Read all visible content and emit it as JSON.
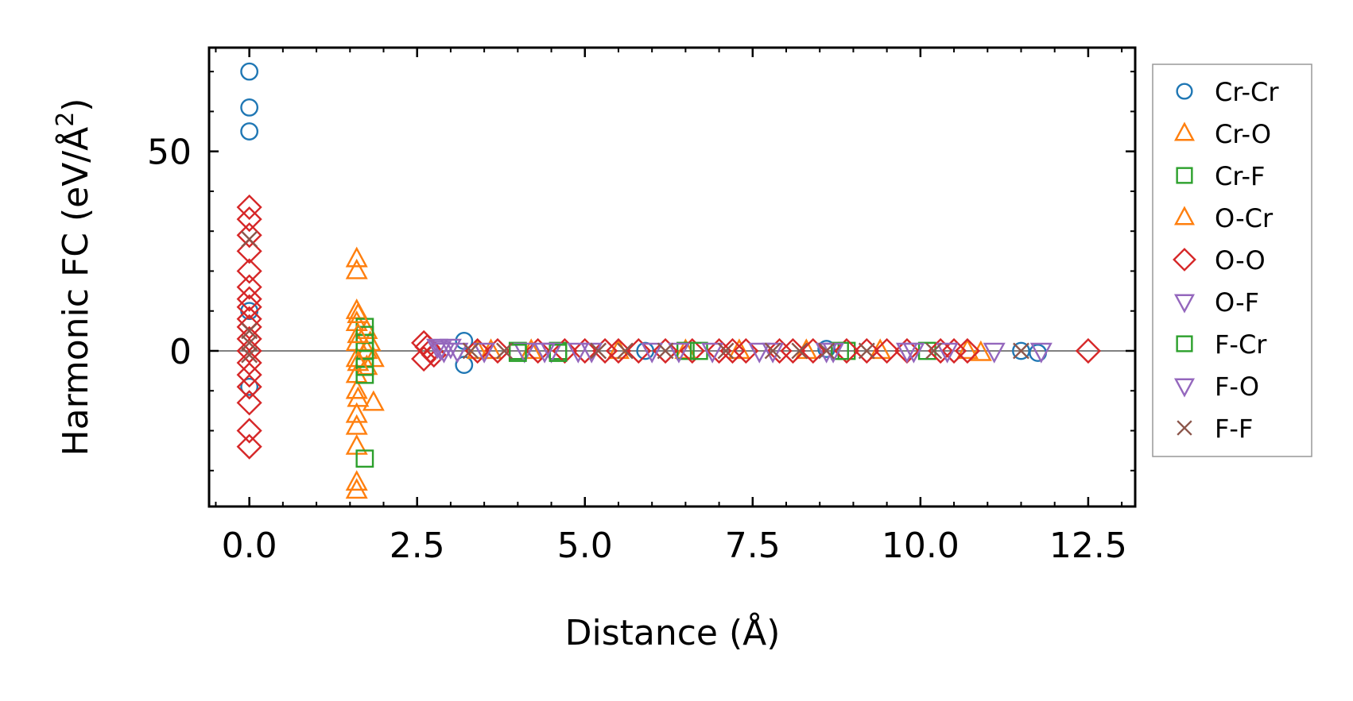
{
  "chart_data": {
    "type": "scatter",
    "xlabel": "Distance (Å)",
    "ylabel_prefix": "Harmonic FC (eV/Å",
    "ylabel_sup": "2",
    "ylabel_suffix": ")",
    "xlim": [
      -0.6,
      13.2
    ],
    "ylim": [
      -39,
      76
    ],
    "xticks": [
      0.0,
      2.5,
      5.0,
      7.5,
      10.0,
      12.5
    ],
    "xtick_labels": [
      "0.0",
      "2.5",
      "5.0",
      "7.5",
      "10.0",
      "12.5"
    ],
    "yticks": [
      0,
      50
    ],
    "ytick_labels": [
      "0",
      "50"
    ],
    "zero_line": true,
    "legend_position": "right, outside",
    "series": [
      {
        "name": "Cr-Cr",
        "marker": "circle",
        "color": "#1f77b4",
        "points": [
          [
            0,
            70
          ],
          [
            0,
            61
          ],
          [
            0,
            55
          ],
          [
            0,
            10
          ],
          [
            0,
            -9
          ],
          [
            3.2,
            2.5
          ],
          [
            3.2,
            -3.5
          ],
          [
            5.9,
            0
          ],
          [
            8.6,
            0.5
          ],
          [
            11.5,
            0
          ],
          [
            11.75,
            -0.5
          ]
        ]
      },
      {
        "name": "Cr-O",
        "marker": "triangle-up",
        "color": "#ff7f0e",
        "points": [
          [
            1.6,
            23
          ],
          [
            1.6,
            20
          ],
          [
            1.6,
            10
          ],
          [
            1.6,
            7
          ],
          [
            1.6,
            2
          ],
          [
            1.6,
            -2
          ],
          [
            1.6,
            -6
          ],
          [
            1.6,
            -10
          ],
          [
            1.6,
            -16
          ],
          [
            1.6,
            -19
          ],
          [
            1.6,
            -24
          ],
          [
            1.6,
            -33
          ],
          [
            1.6,
            -35
          ],
          [
            1.75,
            5
          ],
          [
            1.75,
            0
          ],
          [
            1.75,
            -4
          ],
          [
            1.8,
            2
          ],
          [
            1.85,
            -2
          ],
          [
            1.85,
            -13
          ],
          [
            3.4,
            0
          ],
          [
            4.2,
            0
          ],
          [
            6.5,
            0
          ],
          [
            8.3,
            0
          ],
          [
            10.7,
            0
          ],
          [
            10.9,
            -0.5
          ]
        ]
      },
      {
        "name": "Cr-F",
        "marker": "square",
        "color": "#2ca02c",
        "points": [
          [
            1.72,
            6
          ],
          [
            1.72,
            4
          ],
          [
            1.72,
            2
          ],
          [
            1.72,
            0
          ],
          [
            1.72,
            -2
          ],
          [
            1.72,
            -4
          ],
          [
            1.72,
            -6
          ],
          [
            1.72,
            -27
          ],
          [
            4.0,
            0
          ],
          [
            4.6,
            0
          ],
          [
            6.5,
            0
          ],
          [
            8.9,
            0
          ],
          [
            10.1,
            0
          ]
        ]
      },
      {
        "name": "O-Cr",
        "marker": "triangle-up",
        "color": "#ff7f0e",
        "points": [
          [
            1.62,
            9
          ],
          [
            1.62,
            4
          ],
          [
            1.62,
            -3
          ],
          [
            1.62,
            -12
          ],
          [
            3.6,
            0
          ],
          [
            5.5,
            0
          ],
          [
            7.3,
            0
          ],
          [
            9.4,
            0
          ]
        ]
      },
      {
        "name": "O-O",
        "marker": "diamond",
        "color": "#d62728",
        "points": [
          [
            0,
            36
          ],
          [
            0,
            33
          ],
          [
            0,
            29
          ],
          [
            0,
            25
          ],
          [
            0,
            20
          ],
          [
            0,
            16
          ],
          [
            0,
            13
          ],
          [
            0,
            11
          ],
          [
            0,
            8
          ],
          [
            0,
            6
          ],
          [
            0,
            3
          ],
          [
            0,
            0
          ],
          [
            0,
            -3
          ],
          [
            0,
            -6
          ],
          [
            0,
            -9
          ],
          [
            0,
            -13
          ],
          [
            0,
            -20
          ],
          [
            0,
            -24
          ],
          [
            2.6,
            2
          ],
          [
            2.6,
            -2
          ],
          [
            2.65,
            1
          ],
          [
            2.7,
            0
          ],
          [
            2.75,
            -1
          ],
          [
            3.4,
            0
          ],
          [
            3.7,
            0
          ],
          [
            4.3,
            0
          ],
          [
            4.7,
            0
          ],
          [
            5.0,
            0
          ],
          [
            5.3,
            0
          ],
          [
            5.5,
            0
          ],
          [
            5.8,
            0
          ],
          [
            6.2,
            0
          ],
          [
            6.6,
            0
          ],
          [
            7.0,
            0
          ],
          [
            7.2,
            0
          ],
          [
            7.4,
            0
          ],
          [
            7.9,
            0
          ],
          [
            8.1,
            0
          ],
          [
            8.4,
            0
          ],
          [
            8.9,
            0
          ],
          [
            9.2,
            0
          ],
          [
            9.5,
            0
          ],
          [
            9.8,
            0
          ],
          [
            10.3,
            0
          ],
          [
            10.5,
            0
          ],
          [
            10.7,
            0
          ],
          [
            12.5,
            0
          ]
        ]
      },
      {
        "name": "O-F",
        "marker": "triangle-down",
        "color": "#9467bd",
        "points": [
          [
            2.8,
            1
          ],
          [
            2.9,
            0
          ],
          [
            3.0,
            1
          ],
          [
            3.5,
            0
          ],
          [
            4.1,
            0
          ],
          [
            4.5,
            0
          ],
          [
            4.9,
            0
          ],
          [
            6.0,
            0
          ],
          [
            6.4,
            0
          ],
          [
            7.8,
            0
          ],
          [
            8.6,
            0
          ],
          [
            9.8,
            0
          ],
          [
            11.1,
            0
          ],
          [
            11.8,
            0
          ]
        ]
      },
      {
        "name": "F-Cr",
        "marker": "square",
        "color": "#2ca02c",
        "points": [
          [
            4.0,
            -0.5
          ],
          [
            4.6,
            -0.5
          ],
          [
            6.7,
            0
          ],
          [
            8.8,
            0
          ]
        ]
      },
      {
        "name": "F-O",
        "marker": "triangle-down",
        "color": "#9467bd",
        "points": [
          [
            2.85,
            0.5
          ],
          [
            3.1,
            0
          ],
          [
            4.4,
            0
          ],
          [
            5.1,
            0
          ],
          [
            6.9,
            0
          ],
          [
            7.6,
            0
          ],
          [
            8.7,
            0
          ],
          [
            9.9,
            0
          ],
          [
            10.4,
            0
          ]
        ]
      },
      {
        "name": "F-F",
        "marker": "x",
        "color": "#8c564b",
        "points": [
          [
            0,
            28
          ],
          [
            0,
            5
          ],
          [
            0,
            2
          ],
          [
            0,
            -1
          ],
          [
            3.3,
            0
          ],
          [
            3.8,
            0
          ],
          [
            5.2,
            0
          ],
          [
            5.6,
            0
          ],
          [
            6.2,
            0
          ],
          [
            7.1,
            0
          ],
          [
            7.8,
            0
          ],
          [
            8.2,
            0
          ],
          [
            8.6,
            0
          ],
          [
            9.2,
            0
          ],
          [
            10.2,
            0
          ],
          [
            11.5,
            0
          ]
        ]
      }
    ]
  }
}
